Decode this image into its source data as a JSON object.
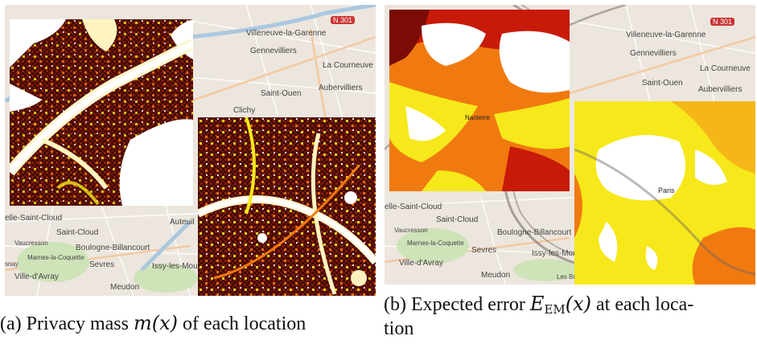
{
  "panel_a": {
    "caption_prefix": "(a) Privacy mass",
    "caption_math": "m(x)",
    "caption_suffix": "of each location",
    "places": {
      "villeneuve": "Villeneuve-la-Garenne",
      "gennevilliers": "Gennevilliers",
      "la_courneuve": "La Courneuve",
      "aubervilliers": "Aubervilliers",
      "saint_ouen": "Saint-Ouen",
      "saint_cloud_w": "elle-Saint-Cloud",
      "saint_cloud": "Saint-Cloud",
      "vaucresson": "Vaucresson",
      "boulogne": "Boulogne-Billancourt",
      "auteuil": "Auteuil",
      "marnes": "Marnes-la-Coquette",
      "sevres": "Sevres",
      "issy": "Issy-les-Mou",
      "ville_avray": "Ville-d'Avray",
      "meudon": "Meudon",
      "clichy": "Clichy",
      "snay": "snay",
      "road": "N 301"
    }
  },
  "panel_b": {
    "caption_prefix": "(b) Expected error",
    "caption_math_main": "E",
    "caption_math_sub": "EM",
    "caption_math_arg": "(x)",
    "caption_suffix": "at each loca-",
    "caption_line2": "tion",
    "places": {
      "villeneuve": "Villeneuve-la-Garenne",
      "gennevilliers": "Gennevilliers",
      "la_courneuve": "La Courneuve",
      "saint_ouen": "Saint-Ouen",
      "aubervilliers": "Aubervilliers",
      "nanterre": "Nanterre",
      "paris": "Paris",
      "saint_cloud_w": "elle-Saint-Cloud",
      "saint_cloud": "Saint-Cloud",
      "vaucresson": "Vaucresson",
      "boulogne": "Boulogne-Billancourt",
      "marnes": "Marnes-la-Coquette",
      "sevres": "Sevres",
      "issy": "Issy-les-Moulineaux",
      "ville_avray": "Ville-d'Avray",
      "meudon": "Meudon",
      "bruyeres": "Les Bruyeres",
      "road": "N 301"
    }
  },
  "colors": {
    "map_bg": "#ece6de",
    "heat_dark": "#3a0a05",
    "heat_red": "#c81a08",
    "heat_orange": "#f07a10",
    "heat_yellow": "#f6e81a",
    "heat_white": "#ffffff"
  }
}
